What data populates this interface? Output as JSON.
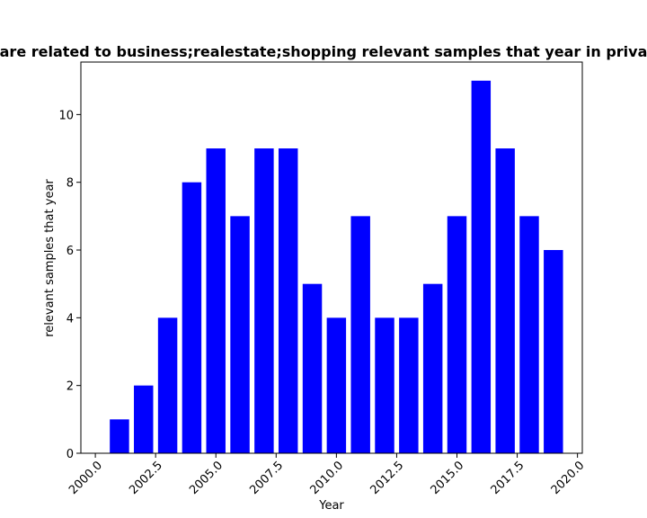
{
  "chart_data": {
    "type": "bar",
    "title": "are related to business;realestate;shopping relevant samples that year in priva",
    "xlabel": "Year",
    "ylabel": "relevant samples that year",
    "x": [
      2001,
      2002,
      2003,
      2004,
      2005,
      2006,
      2007,
      2008,
      2009,
      2010,
      2011,
      2012,
      2013,
      2014,
      2015,
      2016,
      2017,
      2018,
      2019
    ],
    "values": [
      1,
      2,
      4,
      8,
      9,
      7,
      9,
      9,
      5,
      4,
      7,
      4,
      4,
      5,
      7,
      11,
      9,
      7,
      6
    ],
    "xlim": [
      1999.4,
      2020.2
    ],
    "ylim": [
      0,
      11.55
    ],
    "xticks": [
      "2000.0",
      "2002.5",
      "2005.0",
      "2007.5",
      "2010.0",
      "2012.5",
      "2015.0",
      "2017.5",
      "2020.0"
    ],
    "yticks": [
      "0",
      "2",
      "4",
      "6",
      "8",
      "10"
    ],
    "bar_color": "#0000ff",
    "grid": false,
    "legend": false
  }
}
